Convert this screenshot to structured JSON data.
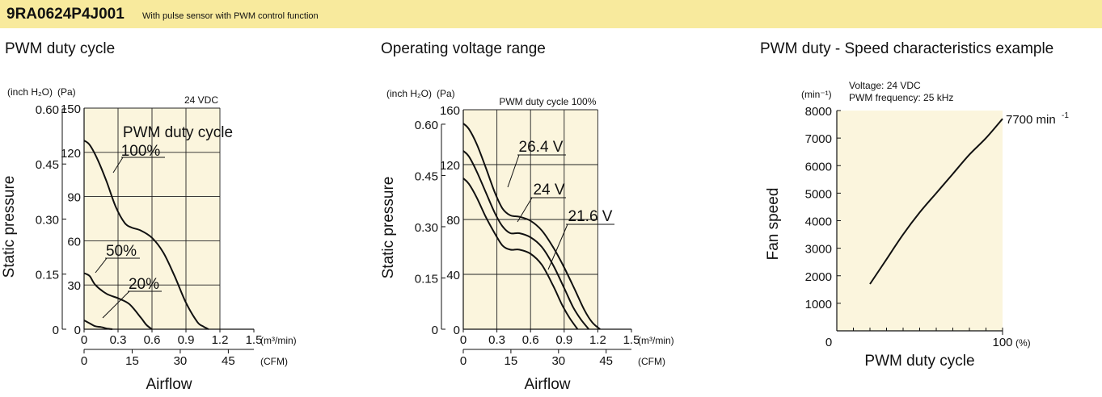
{
  "header": {
    "model": "9RA0624P4J001",
    "subtitle": "With pulse sensor with PWM control function",
    "band_color": "#f8ea9d"
  },
  "plot_bg": "#fbf5dd",
  "chart_data": [
    {
      "id": "c1",
      "type": "line",
      "title": "PWM duty cycle",
      "note": "24 VDC",
      "legend_title": "PWM duty cycle",
      "xlabel": "Airflow",
      "ylabel": "Static pressure",
      "x_unit": "(m³/min)",
      "x2_unit": "(CFM)",
      "y_unit_left": "(inch H₂O)",
      "y_unit_right": "(Pa)",
      "xlim": [
        0,
        1.5
      ],
      "ylim": [
        0,
        150
      ],
      "x_ticks": [
        "0",
        "0.3",
        "0.6",
        "0.9",
        "1.2",
        "1.5"
      ],
      "x_ticks_values": [
        0,
        0.3,
        0.6,
        0.9,
        1.2,
        1.5
      ],
      "x2_ticks": [
        "0",
        "15",
        "30",
        "45"
      ],
      "x2_ticks_values": [
        0,
        15,
        30,
        45
      ],
      "y_ticks_pa": [
        "0",
        "30",
        "60",
        "90",
        "120",
        "150"
      ],
      "y_ticks_pa_values": [
        0,
        30,
        60,
        90,
        120,
        150
      ],
      "y_ticks_inch": [
        "0",
        "0.15",
        "0.30",
        "0.45",
        "0.60"
      ],
      "y_ticks_inch_values": [
        0,
        0.15,
        0.3,
        0.45,
        0.6
      ],
      "series": [
        {
          "name": "100%",
          "x": [
            0,
            0.05,
            0.12,
            0.2,
            0.28,
            0.36,
            0.42,
            0.5,
            0.6,
            0.7,
            0.8,
            0.9,
            1.0,
            1.05,
            1.1
          ],
          "y": [
            128,
            125,
            115,
            100,
            83,
            72,
            69,
            67,
            62,
            52,
            36,
            18,
            5,
            2,
            0
          ]
        },
        {
          "name": "50%",
          "x": [
            0,
            0.05,
            0.1,
            0.2,
            0.3,
            0.4,
            0.5,
            0.55,
            0.6
          ],
          "y": [
            38,
            36,
            30,
            24,
            21,
            17,
            8,
            3,
            0
          ]
        },
        {
          "name": "20%",
          "x": [
            0,
            0.05,
            0.1,
            0.15,
            0.2,
            0.25
          ],
          "y": [
            6,
            4,
            2,
            1.5,
            0.5,
            0
          ]
        }
      ],
      "labels": [
        "100%",
        "50%",
        "20%"
      ]
    },
    {
      "id": "c2",
      "type": "line",
      "title": "Operating voltage range",
      "note": "PWM duty cycle 100%",
      "xlabel": "Airflow",
      "ylabel": "Static pressure",
      "x_unit": "(m³/min)",
      "x2_unit": "(CFM)",
      "y_unit_left": "(inch H₂O)",
      "y_unit_right": "(Pa)",
      "xlim": [
        0,
        1.5
      ],
      "ylim": [
        0,
        160
      ],
      "x_ticks": [
        "0",
        "0.3",
        "0.6",
        "0.9",
        "1.2",
        "1.5"
      ],
      "x_ticks_values": [
        0,
        0.3,
        0.6,
        0.9,
        1.2,
        1.5
      ],
      "x2_ticks": [
        "0",
        "15",
        "30",
        "45"
      ],
      "x2_ticks_values": [
        0,
        15,
        30,
        45
      ],
      "y_ticks_pa": [
        "0",
        "40",
        "80",
        "120",
        "160"
      ],
      "y_ticks_pa_values": [
        0,
        40,
        80,
        120,
        160
      ],
      "y_ticks_inch": [
        "0",
        "0.15",
        "0.30",
        "0.45",
        "0.60"
      ],
      "y_ticks_inch_values": [
        0,
        0.15,
        0.3,
        0.45,
        0.6
      ],
      "series": [
        {
          "name": "26.4 V",
          "x": [
            0,
            0.05,
            0.12,
            0.2,
            0.28,
            0.35,
            0.42,
            0.5,
            0.6,
            0.7,
            0.8,
            0.9,
            1.0,
            1.08,
            1.15,
            1.22
          ],
          "y": [
            150,
            146,
            135,
            118,
            100,
            88,
            83,
            82,
            79,
            72,
            60,
            45,
            28,
            14,
            5,
            0
          ]
        },
        {
          "name": "24 V",
          "x": [
            0,
            0.05,
            0.12,
            0.2,
            0.28,
            0.35,
            0.42,
            0.5,
            0.6,
            0.7,
            0.8,
            0.9,
            0.98,
            1.05,
            1.12
          ],
          "y": [
            130,
            126,
            115,
            100,
            85,
            75,
            70,
            70,
            67,
            60,
            47,
            30,
            16,
            7,
            0
          ]
        },
        {
          "name": "21.6 V",
          "x": [
            0,
            0.05,
            0.12,
            0.2,
            0.28,
            0.35,
            0.42,
            0.5,
            0.6,
            0.7,
            0.8,
            0.88,
            0.95,
            1.02
          ],
          "y": [
            110,
            106,
            96,
            82,
            70,
            61,
            58,
            58,
            55,
            47,
            32,
            18,
            8,
            0
          ]
        }
      ],
      "labels": [
        "26.4 V",
        "24 V",
        "21.6 V"
      ]
    },
    {
      "id": "c3",
      "type": "line",
      "title": "PWM duty - Speed characteristics example",
      "note_lines": [
        "Voltage: 24 VDC",
        "PWM frequency: 25 kHz"
      ],
      "xlabel": "PWM duty cycle",
      "ylabel": "Fan speed",
      "x_unit": "(%)",
      "y_unit": "(min⁻¹)",
      "end_label": "7700 min",
      "end_label_sup": "-1",
      "xlim": [
        0,
        100
      ],
      "ylim": [
        0,
        8000
      ],
      "x_ticks": [
        "0",
        "100"
      ],
      "x_ticks_values": [
        0,
        100
      ],
      "y_ticks": [
        "1000",
        "2000",
        "3000",
        "4000",
        "5000",
        "6000",
        "7000",
        "8000"
      ],
      "y_ticks_values": [
        1000,
        2000,
        3000,
        4000,
        5000,
        6000,
        7000,
        8000
      ],
      "series": [
        {
          "name": "Fan speed",
          "x": [
            20,
            30,
            40,
            50,
            60,
            70,
            80,
            90,
            100
          ],
          "y": [
            1700,
            2600,
            3500,
            4300,
            5000,
            5700,
            6400,
            7000,
            7700
          ]
        }
      ]
    }
  ]
}
